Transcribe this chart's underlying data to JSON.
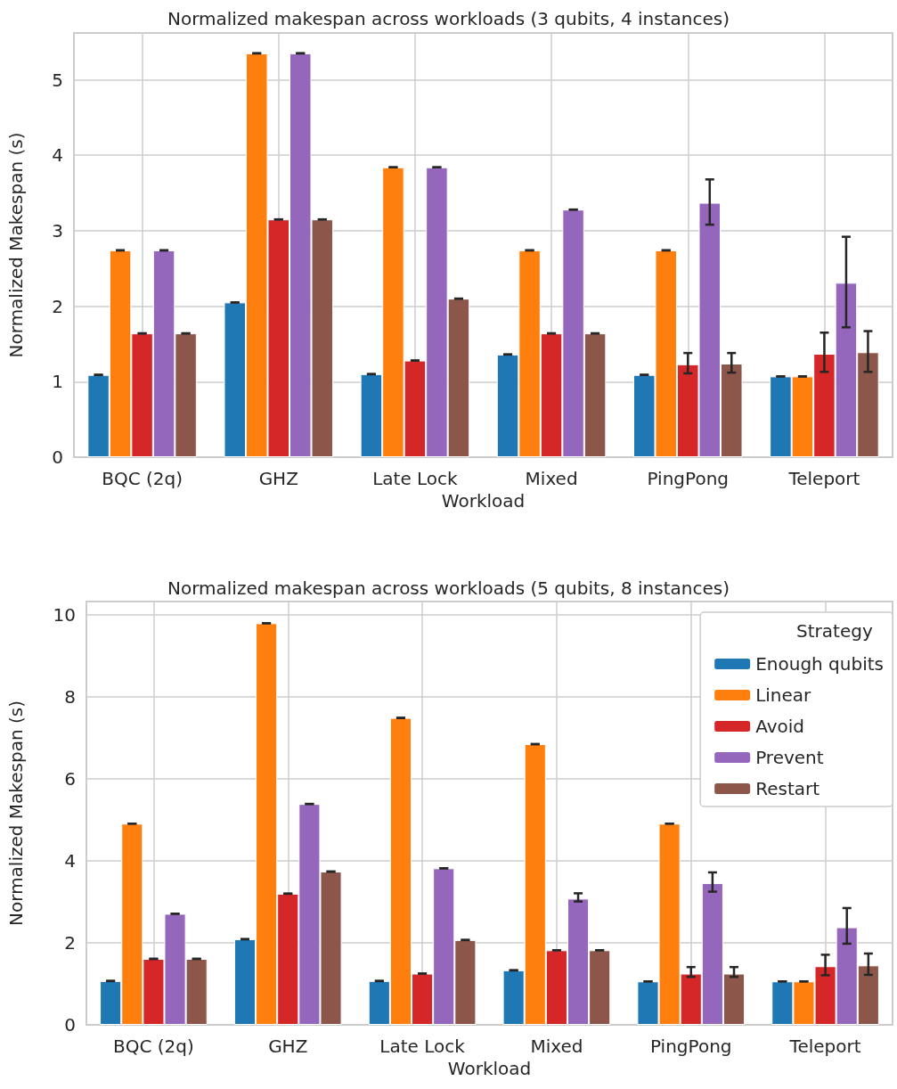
{
  "chart_data": [
    {
      "type": "bar",
      "title": "Normalized makespan across workloads (3 qubits, 4 instances)",
      "xlabel": "Workload",
      "ylabel": "Normalized Makespan (s)",
      "categories": [
        "BQC (2q)",
        "GHZ",
        "Late Lock",
        "Mixed",
        "PingPong",
        "Teleport"
      ],
      "series": [
        {
          "color": "#1f77b4",
          "values": [
            1.09,
            2.05,
            1.1,
            1.36,
            1.09,
            1.07
          ],
          "errors": [
            0,
            0,
            0,
            0,
            0,
            0
          ]
        },
        {
          "color": "#ff7f0e",
          "values": [
            2.74,
            5.35,
            3.84,
            2.74,
            2.74,
            1.07
          ],
          "errors": [
            0,
            0,
            0,
            0,
            0,
            0
          ]
        },
        {
          "color": "#d62728",
          "values": [
            1.64,
            3.15,
            1.28,
            1.64,
            1.23,
            1.37
          ],
          "errors": [
            0,
            0,
            0,
            0,
            [
              1.11,
              1.38
            ],
            [
              1.13,
              1.65
            ]
          ]
        },
        {
          "color": "#9467bd",
          "values": [
            2.74,
            5.35,
            3.84,
            3.28,
            3.37,
            2.31
          ],
          "errors": [
            0,
            0,
            0,
            0,
            [
              3.08,
              3.68
            ],
            [
              1.72,
              2.92
            ]
          ]
        },
        {
          "color": "#8c564b",
          "values": [
            1.64,
            3.15,
            2.1,
            1.64,
            1.24,
            1.39
          ],
          "errors": [
            0,
            0,
            0,
            0,
            [
              1.12,
              1.38
            ],
            [
              1.13,
              1.67
            ]
          ]
        }
      ],
      "ylim": [
        0,
        5.62
      ],
      "yticks": [
        0,
        1,
        2,
        3,
        4,
        5
      ],
      "grid": true
    },
    {
      "type": "bar",
      "title": "Normalized makespan across workloads (5 qubits, 8 instances)",
      "xlabel": "Workload",
      "ylabel": "Normalized Makespan (s)",
      "categories": [
        "BQC (2q)",
        "GHZ",
        "Late Lock",
        "Mixed",
        "PingPong",
        "Teleport"
      ],
      "series": [
        {
          "name": "Enough qubits",
          "color": "#1f77b4",
          "values": [
            1.07,
            2.09,
            1.07,
            1.33,
            1.06,
            1.06
          ],
          "errors": [
            0,
            0,
            0,
            0,
            0,
            0
          ]
        },
        {
          "name": "Linear",
          "color": "#ff7f0e",
          "values": [
            4.91,
            9.8,
            7.49,
            6.85,
            4.91,
            1.06
          ],
          "errors": [
            0,
            0,
            0,
            0,
            0,
            0
          ]
        },
        {
          "name": "Avoid",
          "color": "#d62728",
          "values": [
            1.61,
            3.2,
            1.25,
            1.82,
            1.25,
            1.43
          ],
          "errors": [
            0,
            0,
            0,
            0,
            [
              1.17,
              1.41
            ],
            [
              1.21,
              1.71
            ]
          ]
        },
        {
          "name": "Prevent",
          "color": "#9467bd",
          "values": [
            2.71,
            5.39,
            3.82,
            3.08,
            3.46,
            2.38
          ],
          "errors": [
            0,
            0,
            0,
            [
              3.01,
              3.21
            ],
            [
              3.25,
              3.72
            ],
            [
              1.98,
              2.85
            ]
          ]
        },
        {
          "name": "Restart",
          "color": "#8c564b",
          "values": [
            1.61,
            3.74,
            2.07,
            1.82,
            1.25,
            1.45
          ],
          "errors": [
            0,
            0,
            0,
            0,
            [
              1.17,
              1.41
            ],
            [
              1.22,
              1.74
            ]
          ]
        }
      ],
      "ylim": [
        0,
        10.33
      ],
      "yticks": [
        0,
        2,
        4,
        6,
        8,
        10
      ],
      "grid": true,
      "legend": "top right",
      "legend_title": "Strategy"
    }
  ]
}
